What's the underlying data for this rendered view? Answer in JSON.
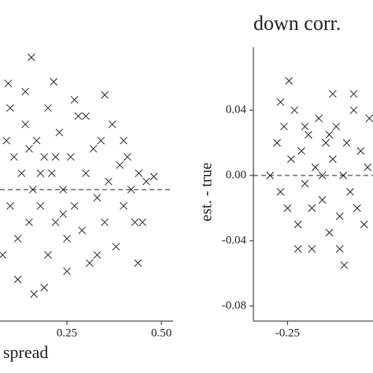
{
  "chart_data": [
    {
      "type": "scatter",
      "xlabel": "spread",
      "xlim": [
        0.073,
        0.531
      ],
      "ylim": [
        -0.0805,
        0.0872
      ],
      "xticks": [
        0.25,
        {
          "value": 0.5,
          "label": "0.50"
        }
      ],
      "hline": 0,
      "x": [
        0.09,
        0.1,
        0.11,
        0.12,
        0.13,
        0.14,
        0.15,
        0.16,
        0.17,
        0.18,
        0.19,
        0.2,
        0.21,
        0.22,
        0.23,
        0.24,
        0.25,
        0.26,
        0.27,
        0.28,
        0.29,
        0.3,
        0.31,
        0.32,
        0.33,
        0.34,
        0.35,
        0.36,
        0.37,
        0.38,
        0.39,
        0.4,
        0.41,
        0.42,
        0.43,
        0.44,
        0.46,
        0.48,
        0.1,
        0.12,
        0.14,
        0.156,
        0.163,
        0.215,
        0.35,
        0.438,
        0.08,
        0.095,
        0.2,
        0.25,
        0.3,
        0.19,
        0.27,
        0.33,
        0.4,
        0.45,
        0.22,
        0.24,
        0.18,
        0.15
      ],
      "values": [
        0.03,
        -0.01,
        0.02,
        -0.03,
        0.01,
        0.04,
        -0.02,
        0.0,
        0.03,
        -0.01,
        0.02,
        -0.04,
        0.01,
        -0.02,
        0.035,
        0.0,
        -0.03,
        0.02,
        -0.01,
        0.045,
        -0.025,
        0.01,
        -0.045,
        0.025,
        -0.005,
        0.03,
        -0.02,
        0.005,
        0.04,
        -0.035,
        0.015,
        -0.01,
        0.02,
        0.0,
        -0.02,
        0.01,
        0.005,
        0.008,
        0.05,
        -0.055,
        0.06,
        0.081,
        -0.064,
        0.066,
        0.058,
        -0.045,
        -0.04,
        0.065,
        0.05,
        -0.05,
        0.045,
        -0.06,
        0.055,
        -0.04,
        0.03,
        -0.02,
        0.02,
        -0.015,
        0.01,
        0.025
      ]
    },
    {
      "type": "scatter",
      "title": "down corr.",
      "ylabel": "est. - true",
      "xlim": [
        -0.348,
        -0.0045
      ],
      "ylim": [
        -0.0892,
        0.0786
      ],
      "xticks": [
        -0.25
      ],
      "yticks": [
        0.04,
        {
          "value": 0,
          "label": "0.00"
        },
        -0.04,
        -0.08
      ],
      "hline": 0,
      "x": [
        -0.246,
        -0.3,
        -0.28,
        -0.27,
        -0.26,
        -0.25,
        -0.24,
        -0.23,
        -0.22,
        -0.21,
        -0.2,
        -0.19,
        -0.18,
        -0.17,
        -0.16,
        -0.15,
        -0.14,
        -0.13,
        -0.12,
        -0.11,
        -0.1,
        -0.09,
        -0.087,
        -0.08,
        -0.07,
        -0.06,
        -0.05,
        -0.04,
        -0.03,
        -0.02,
        -0.015,
        -0.12,
        -0.18,
        -0.22,
        -0.27,
        -0.1,
        -0.06,
        -0.2,
        -0.15,
        -0.13
      ],
      "values": [
        0.058,
        0.0,
        0.02,
        -0.01,
        0.03,
        -0.02,
        0.01,
        0.04,
        -0.03,
        0.015,
        -0.005,
        0.025,
        -0.02,
        0.005,
        0.035,
        -0.015,
        0.02,
        -0.035,
        0.01,
        0.03,
        -0.025,
        0.0,
        -0.055,
        0.02,
        -0.01,
        0.04,
        -0.02,
        0.015,
        -0.03,
        0.005,
        0.035,
        0.05,
        -0.045,
        -0.045,
        0.045,
        -0.045,
        0.05,
        0.03,
        0.0,
        0.025
      ]
    }
  ]
}
